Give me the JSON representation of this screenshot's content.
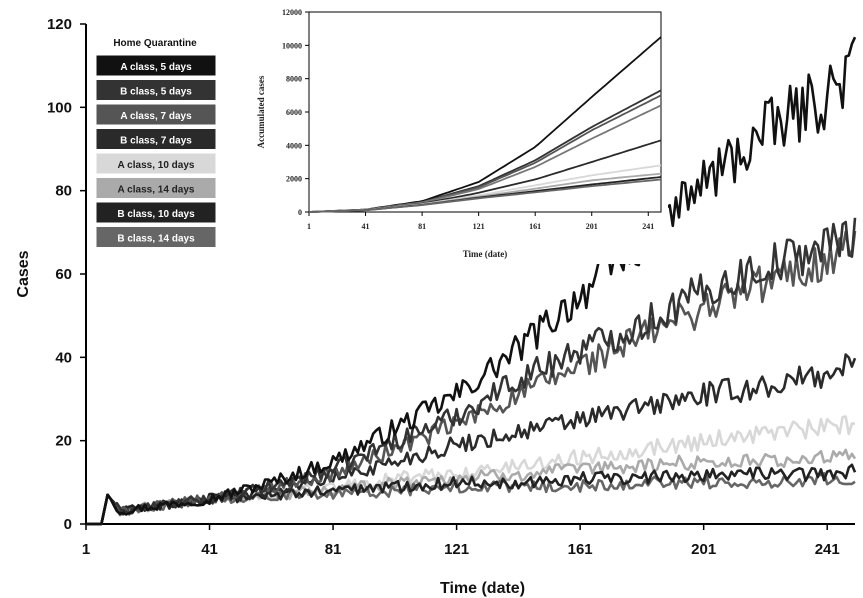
{
  "chart_data": [
    {
      "type": "line",
      "xlabel": "Time (date)",
      "ylabel": "Cases",
      "xlim": [
        1,
        250
      ],
      "ylim": [
        0,
        120
      ],
      "x_ticks": [
        "1",
        "41",
        "81",
        "121",
        "161",
        "201",
        "241"
      ],
      "y_ticks": [
        "0",
        "20",
        "40",
        "60",
        "80",
        "100",
        "120"
      ],
      "grid": false,
      "legend": {
        "title": "Home Quarantine",
        "placement": "top-left",
        "entries": [
          "A class, 5 days",
          "B class, 5 days",
          "A class, 7 days",
          "B class, 7 days",
          "A class, 10 days",
          "A class, 14 days",
          "B class, 10 days",
          "B class, 14 days"
        ]
      },
      "x": [
        1,
        6,
        8,
        12,
        20,
        41,
        61,
        81,
        101,
        121,
        141,
        161,
        181,
        201,
        221,
        241,
        250
      ],
      "series": [
        {
          "name": "A class, 5 days",
          "color": "#111111",
          "values": [
            0,
            0,
            7,
            3,
            4,
            6,
            10,
            15,
            23,
            31,
            42,
            55,
            68,
            82,
            94,
            103,
            110
          ]
        },
        {
          "name": "B class, 5 days",
          "color": "#333333",
          "values": [
            0,
            0,
            7,
            3,
            4,
            6,
            9,
            13,
            20,
            26,
            35,
            42,
            48,
            56,
            62,
            67,
            70
          ]
        },
        {
          "name": "A class, 7 days",
          "color": "#555555",
          "values": [
            0,
            0,
            7,
            3,
            4,
            6,
            9,
            12,
            18,
            24,
            31,
            38,
            45,
            52,
            58,
            63,
            68
          ]
        },
        {
          "name": "B class, 7 days",
          "color": "#2a2a2a",
          "values": [
            0,
            0,
            7,
            3,
            4,
            6,
            8,
            11,
            15,
            19,
            22,
            25,
            28,
            31,
            33,
            36,
            39
          ]
        },
        {
          "name": "A class, 10 days",
          "color": "#d8d8d8",
          "values": [
            0,
            0,
            7,
            3,
            4,
            6,
            7,
            9,
            11,
            12,
            14,
            16,
            18,
            20,
            22,
            23,
            24
          ]
        },
        {
          "name": "A class, 14 days",
          "color": "#aaaaaa",
          "values": [
            0,
            0,
            7,
            3,
            4,
            6,
            7,
            8,
            10,
            11,
            12,
            13,
            14,
            15,
            15,
            16,
            16
          ]
        },
        {
          "name": "B class, 10 days",
          "color": "#222222",
          "values": [
            0,
            0,
            7,
            3,
            4,
            6,
            7,
            8,
            9,
            10,
            10,
            11,
            11,
            12,
            12,
            12,
            13
          ]
        },
        {
          "name": "B class, 14 days",
          "color": "#666666",
          "values": [
            0,
            0,
            7,
            3,
            4,
            6,
            7,
            7,
            8,
            9,
            9,
            9,
            10,
            10,
            10,
            11,
            11
          ]
        }
      ]
    },
    {
      "type": "line",
      "placement": "inset-top-center",
      "xlabel": "Time (date)",
      "ylabel": "Accumulated cases",
      "xlim": [
        1,
        250
      ],
      "ylim": [
        0,
        12000
      ],
      "x_ticks": [
        "1",
        "41",
        "81",
        "121",
        "161",
        "201",
        "241"
      ],
      "y_ticks": [
        "0",
        "2000",
        "4000",
        "6000",
        "8000",
        "10000",
        "12000"
      ],
      "x": [
        1,
        41,
        81,
        121,
        161,
        201,
        250
      ],
      "series": [
        {
          "color": "#111111",
          "values": [
            0,
            150,
            650,
            1800,
            3900,
            6900,
            10500
          ]
        },
        {
          "color": "#333333",
          "values": [
            0,
            140,
            600,
            1550,
            3100,
            5100,
            7300
          ]
        },
        {
          "color": "#555555",
          "values": [
            0,
            140,
            580,
            1480,
            2950,
            4900,
            7000
          ]
        },
        {
          "color": "#777777",
          "values": [
            0,
            130,
            560,
            1380,
            2700,
            4400,
            6400
          ]
        },
        {
          "color": "#2a2a2a",
          "values": [
            0,
            120,
            500,
            1150,
            1950,
            3000,
            4300
          ]
        },
        {
          "color": "#d8d8d8",
          "values": [
            0,
            120,
            470,
            1000,
            1600,
            2200,
            2800
          ]
        },
        {
          "color": "#aaaaaa",
          "values": [
            0,
            115,
            450,
            920,
            1400,
            1900,
            2300
          ]
        },
        {
          "color": "#222222",
          "values": [
            0,
            110,
            430,
            860,
            1250,
            1650,
            2100
          ]
        },
        {
          "color": "#666666",
          "values": [
            0,
            105,
            420,
            820,
            1180,
            1550,
            1950
          ]
        }
      ]
    }
  ]
}
